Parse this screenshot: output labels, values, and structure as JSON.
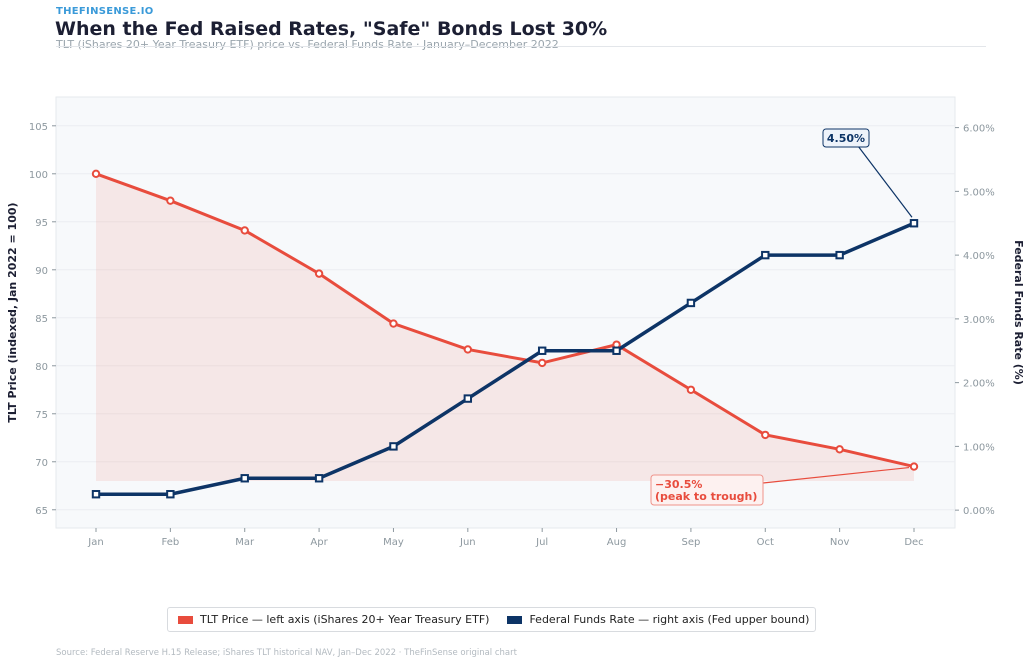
{
  "header": {
    "brand": "THEFINSENSE.IO",
    "title": "When the Fed Raised Rates, \"Safe\" Bonds Lost 30%",
    "subtitle": "TLT (iShares 20+ Year Treasury ETF) price vs. Federal Funds Rate  ·  January–December 2022"
  },
  "chart_data": {
    "type": "line",
    "categories": [
      "Jan",
      "Feb",
      "Mar",
      "Apr",
      "May",
      "Jun",
      "Jul",
      "Aug",
      "Sep",
      "Oct",
      "Nov",
      "Dec"
    ],
    "series": [
      {
        "name": "TLT Price — left axis (iShares 20+ Year Treasury ETF)",
        "axis": "left",
        "color": "#e84c3d",
        "values": [
          100,
          97.2,
          94.1,
          89.6,
          84.4,
          81.7,
          80.3,
          82.2,
          77.5,
          72.8,
          71.3,
          69.5
        ]
      },
      {
        "name": "Federal Funds Rate — right axis (Fed upper bound)",
        "axis": "right",
        "color": "#0d3466",
        "values": [
          0.25,
          0.25,
          0.5,
          0.5,
          1.0,
          1.75,
          2.5,
          2.5,
          3.25,
          4.0,
          4.0,
          4.5
        ]
      }
    ],
    "ylabel": "TLT Price (indexed, Jan 2022 = 100)",
    "ylabel_right": "Federal Funds Rate (%)",
    "ylim": [
      63.1,
      108
    ],
    "ylim_right": [
      -0.28,
      6.48
    ],
    "yticks": [
      "65",
      "70",
      "75",
      "80",
      "85",
      "90",
      "95",
      "100",
      "105"
    ],
    "yticks_right": [
      "0.00%",
      "1.00%",
      "2.00%",
      "3.00%",
      "4.00%",
      "5.00%",
      "6.00%"
    ],
    "grid": true,
    "legend": "bottom",
    "annotations": [
      {
        "text": "4.50%",
        "series": 1,
        "point": "Dec"
      },
      {
        "line1": "−30.5%",
        "line2": "(peak to trough)",
        "series": 0,
        "point": "Dec"
      }
    ]
  },
  "source": "Source: Federal Reserve H.15 Release; iShares TLT historical NAV, Jan–Dec 2022  ·  TheFinSense original chart"
}
